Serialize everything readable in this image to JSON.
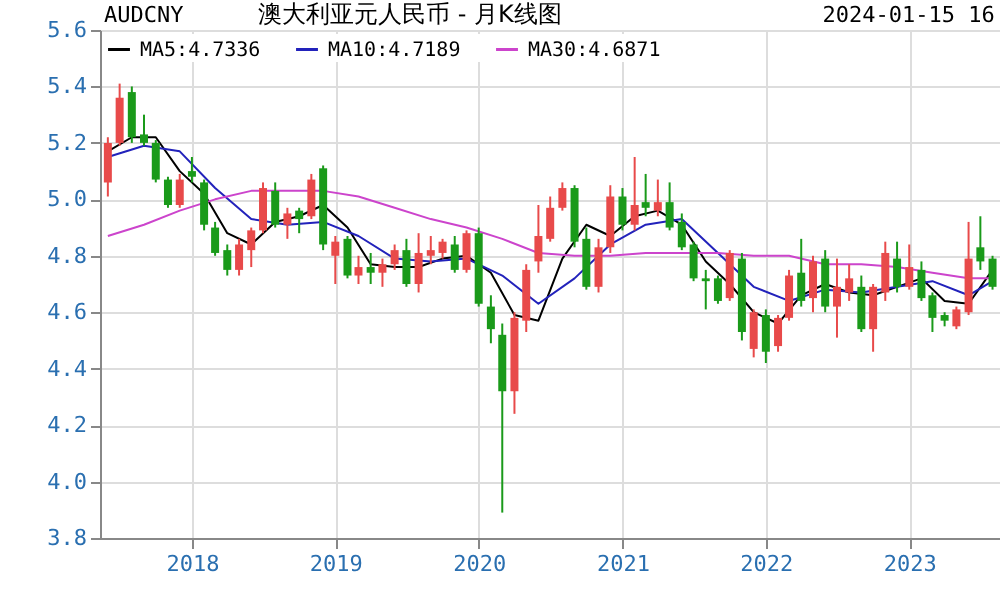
{
  "chart_data": {
    "type": "candlestick",
    "title": "澳大利亚元人民币 - 月K线图",
    "annotations": [
      "AUDCNY",
      "2024-01-15 16:"
    ],
    "x": [
      "2017-06",
      "2017-07",
      "2017-08",
      "2017-09",
      "2017-10",
      "2017-11",
      "2017-12",
      "2018-01",
      "2018-02",
      "2018-03",
      "2018-04",
      "2018-05",
      "2018-06",
      "2018-07",
      "2018-08",
      "2018-09",
      "2018-10",
      "2018-11",
      "2018-12",
      "2019-01",
      "2019-02",
      "2019-03",
      "2019-04",
      "2019-05",
      "2019-06",
      "2019-07",
      "2019-08",
      "2019-09",
      "2019-10",
      "2019-11",
      "2019-12",
      "2020-01",
      "2020-02",
      "2020-03",
      "2020-04",
      "2020-05",
      "2020-06",
      "2020-07",
      "2020-08",
      "2020-09",
      "2020-10",
      "2020-11",
      "2020-12",
      "2021-01",
      "2021-02",
      "2021-03",
      "2021-04",
      "2021-05",
      "2021-06",
      "2021-07",
      "2021-08",
      "2021-09",
      "2021-10",
      "2021-11",
      "2021-12",
      "2022-01",
      "2022-02",
      "2022-03",
      "2022-04",
      "2022-05",
      "2022-06",
      "2022-07",
      "2022-08",
      "2022-09",
      "2022-10",
      "2022-11",
      "2022-12",
      "2023-01",
      "2023-02",
      "2023-03",
      "2023-04",
      "2023-05",
      "2023-06",
      "2023-07",
      "2023-08"
    ],
    "ohlc": [
      [
        5.06,
        5.22,
        5.01,
        5.2
      ],
      [
        5.2,
        5.41,
        5.19,
        5.36
      ],
      [
        5.38,
        5.4,
        5.2,
        5.22
      ],
      [
        5.23,
        5.3,
        5.19,
        5.2
      ],
      [
        5.2,
        5.21,
        5.06,
        5.07
      ],
      [
        5.07,
        5.08,
        4.97,
        4.98
      ],
      [
        4.98,
        5.09,
        4.97,
        5.07
      ],
      [
        5.1,
        5.15,
        5.06,
        5.08
      ],
      [
        5.06,
        5.07,
        4.89,
        4.91
      ],
      [
        4.9,
        4.92,
        4.8,
        4.81
      ],
      [
        4.82,
        4.84,
        4.73,
        4.75
      ],
      [
        4.75,
        4.86,
        4.73,
        4.84
      ],
      [
        4.82,
        4.9,
        4.76,
        4.89
      ],
      [
        4.89,
        5.06,
        4.88,
        5.04
      ],
      [
        5.03,
        5.06,
        4.9,
        4.91
      ],
      [
        4.91,
        4.97,
        4.86,
        4.95
      ],
      [
        4.96,
        4.97,
        4.88,
        4.93
      ],
      [
        4.94,
        5.09,
        4.93,
        5.07
      ],
      [
        5.11,
        5.12,
        4.82,
        4.84
      ],
      [
        4.8,
        4.87,
        4.7,
        4.85
      ],
      [
        4.86,
        4.87,
        4.72,
        4.73
      ],
      [
        4.73,
        4.8,
        4.7,
        4.76
      ],
      [
        4.76,
        4.81,
        4.7,
        4.74
      ],
      [
        4.74,
        4.79,
        4.69,
        4.77
      ],
      [
        4.77,
        4.84,
        4.75,
        4.82
      ],
      [
        4.82,
        4.86,
        4.69,
        4.7
      ],
      [
        4.7,
        4.88,
        4.67,
        4.81
      ],
      [
        4.8,
        4.87,
        4.77,
        4.82
      ],
      [
        4.81,
        4.86,
        4.79,
        4.85
      ],
      [
        4.84,
        4.87,
        4.74,
        4.75
      ],
      [
        4.75,
        4.89,
        4.74,
        4.88
      ],
      [
        4.88,
        4.9,
        4.62,
        4.63
      ],
      [
        4.62,
        4.66,
        4.49,
        4.54
      ],
      [
        4.52,
        4.56,
        3.89,
        4.32
      ],
      [
        4.32,
        4.6,
        4.24,
        4.58
      ],
      [
        4.57,
        4.77,
        4.53,
        4.75
      ],
      [
        4.78,
        4.98,
        4.74,
        4.87
      ],
      [
        4.86,
        5.01,
        4.85,
        4.97
      ],
      [
        4.97,
        5.06,
        4.96,
        5.04
      ],
      [
        5.04,
        5.05,
        4.83,
        4.85
      ],
      [
        4.86,
        4.9,
        4.68,
        4.69
      ],
      [
        4.69,
        4.86,
        4.67,
        4.83
      ],
      [
        4.83,
        5.05,
        4.81,
        5.01
      ],
      [
        5.01,
        5.04,
        4.89,
        4.91
      ],
      [
        4.91,
        5.15,
        4.89,
        4.98
      ],
      [
        4.99,
        5.09,
        4.94,
        4.97
      ],
      [
        4.96,
        5.07,
        4.94,
        4.99
      ],
      [
        4.99,
        5.06,
        4.89,
        4.9
      ],
      [
        4.92,
        4.95,
        4.82,
        4.83
      ],
      [
        4.84,
        4.85,
        4.71,
        4.72
      ],
      [
        4.72,
        4.75,
        4.61,
        4.71
      ],
      [
        4.72,
        4.73,
        4.63,
        4.64
      ],
      [
        4.65,
        4.82,
        4.64,
        4.81
      ],
      [
        4.79,
        4.81,
        4.5,
        4.53
      ],
      [
        4.47,
        4.61,
        4.44,
        4.6
      ],
      [
        4.59,
        4.61,
        4.42,
        4.46
      ],
      [
        4.48,
        4.59,
        4.46,
        4.58
      ],
      [
        4.58,
        4.75,
        4.57,
        4.73
      ],
      [
        4.74,
        4.86,
        4.62,
        4.64
      ],
      [
        4.65,
        4.8,
        4.6,
        4.78
      ],
      [
        4.79,
        4.82,
        4.6,
        4.62
      ],
      [
        4.62,
        4.79,
        4.51,
        4.69
      ],
      [
        4.67,
        4.77,
        4.64,
        4.72
      ],
      [
        4.69,
        4.73,
        4.53,
        4.54
      ],
      [
        4.54,
        4.7,
        4.46,
        4.69
      ],
      [
        4.67,
        4.85,
        4.64,
        4.81
      ],
      [
        4.79,
        4.85,
        4.67,
        4.69
      ],
      [
        4.69,
        4.84,
        4.68,
        4.76
      ],
      [
        4.75,
        4.78,
        4.64,
        4.65
      ],
      [
        4.66,
        4.67,
        4.53,
        4.58
      ],
      [
        4.59,
        4.6,
        4.55,
        4.57
      ],
      [
        4.55,
        4.62,
        4.54,
        4.61
      ],
      [
        4.6,
        4.92,
        4.59,
        4.79
      ],
      [
        4.83,
        4.94,
        4.75,
        4.78
      ],
      [
        4.79,
        4.8,
        4.68,
        4.69
      ]
    ],
    "colors": [
      "#e84a4a",
      "#e84a4a",
      "#1a9a1a",
      "#1a9a1a",
      "#1a9a1a",
      "#1a9a1a",
      "#e84a4a",
      "#1a9a1a",
      "#1a9a1a",
      "#1a9a1a",
      "#1a9a1a",
      "#e84a4a",
      "#e84a4a",
      "#e84a4a",
      "#1a9a1a",
      "#e84a4a",
      "#1a9a1a",
      "#e84a4a",
      "#1a9a1a",
      "#e84a4a",
      "#1a9a1a",
      "#e84a4a",
      "#1a9a1a",
      "#e84a4a",
      "#e84a4a",
      "#1a9a1a",
      "#e84a4a",
      "#e84a4a",
      "#e84a4a",
      "#1a9a1a",
      "#e84a4a",
      "#1a9a1a",
      "#1a9a1a",
      "#1a9a1a",
      "#e84a4a",
      "#e84a4a",
      "#e84a4a",
      "#e84a4a",
      "#e84a4a",
      "#1a9a1a",
      "#1a9a1a",
      "#e84a4a",
      "#e84a4a",
      "#1a9a1a",
      "#e84a4a",
      "#1a9a1a",
      "#e84a4a",
      "#1a9a1a",
      "#1a9a1a",
      "#1a9a1a",
      "#1a9a1a",
      "#1a9a1a",
      "#e84a4a",
      "#1a9a1a",
      "#e84a4a",
      "#1a9a1a",
      "#e84a4a",
      "#e84a4a",
      "#1a9a1a",
      "#e84a4a",
      "#1a9a1a",
      "#e84a4a",
      "#e84a4a",
      "#1a9a1a",
      "#e84a4a",
      "#e84a4a",
      "#1a9a1a",
      "#e84a4a",
      "#1a9a1a",
      "#1a9a1a",
      "#1a9a1a",
      "#e84a4a",
      "#e84a4a",
      "#1a9a1a",
      "#1a9a1a"
    ],
    "series": [
      {
        "name": "MA5:4.7336",
        "type": "line",
        "color": "#000000",
        "x": [
          "2017-06",
          "2017-08",
          "2017-10",
          "2017-12",
          "2018-02",
          "2018-04",
          "2018-06",
          "2018-08",
          "2018-10",
          "2018-12",
          "2019-02",
          "2019-04",
          "2019-06",
          "2019-08",
          "2019-10",
          "2019-12",
          "2020-02",
          "2020-04",
          "2020-06",
          "2020-08",
          "2020-10",
          "2020-12",
          "2021-02",
          "2021-04",
          "2021-06",
          "2021-08",
          "2021-10",
          "2021-12",
          "2022-02",
          "2022-04",
          "2022-06",
          "2022-08",
          "2022-10",
          "2022-12",
          "2023-02",
          "2023-04",
          "2023-06",
          "2023-08"
        ],
        "values": [
          5.17,
          5.22,
          5.22,
          5.1,
          5.02,
          4.88,
          4.84,
          4.92,
          4.94,
          4.98,
          4.9,
          4.77,
          4.76,
          4.76,
          4.79,
          4.8,
          4.74,
          4.59,
          4.57,
          4.79,
          4.91,
          4.87,
          4.94,
          4.96,
          4.91,
          4.78,
          4.7,
          4.6,
          4.56,
          4.66,
          4.7,
          4.67,
          4.66,
          4.69,
          4.72,
          4.64,
          4.63,
          4.75
        ]
      },
      {
        "name": "MA10:4.7189",
        "type": "line",
        "color": "#2222bb",
        "x": [
          "2017-06",
          "2017-09",
          "2017-12",
          "2018-03",
          "2018-06",
          "2018-09",
          "2018-12",
          "2019-03",
          "2019-06",
          "2019-09",
          "2019-12",
          "2020-03",
          "2020-06",
          "2020-09",
          "2020-12",
          "2021-03",
          "2021-06",
          "2021-09",
          "2021-12",
          "2022-03",
          "2022-06",
          "2022-09",
          "2022-12",
          "2023-03",
          "2023-06",
          "2023-08"
        ],
        "values": [
          5.15,
          5.19,
          5.17,
          5.04,
          4.93,
          4.91,
          4.92,
          4.87,
          4.79,
          4.78,
          4.79,
          4.73,
          4.63,
          4.72,
          4.84,
          4.91,
          4.93,
          4.81,
          4.69,
          4.64,
          4.68,
          4.67,
          4.69,
          4.71,
          4.66,
          4.71
        ]
      },
      {
        "name": "MA30:4.6871",
        "type": "line",
        "color": "#cc44cc",
        "x": [
          "2017-06",
          "2017-09",
          "2017-12",
          "2018-03",
          "2018-06",
          "2018-09",
          "2018-12",
          "2019-03",
          "2019-06",
          "2019-09",
          "2019-12",
          "2020-03",
          "2020-06",
          "2020-09",
          "2020-12",
          "2021-03",
          "2021-06",
          "2021-09",
          "2021-12",
          "2022-03",
          "2022-06",
          "2022-09",
          "2022-12",
          "2023-03",
          "2023-06",
          "2023-08"
        ],
        "values": [
          4.87,
          4.91,
          4.96,
          5.0,
          5.03,
          5.03,
          5.03,
          5.01,
          4.97,
          4.93,
          4.9,
          4.86,
          4.81,
          4.8,
          4.8,
          4.81,
          4.81,
          4.81,
          4.8,
          4.8,
          4.77,
          4.77,
          4.76,
          4.74,
          4.72,
          4.72
        ]
      }
    ],
    "xlim": [
      "2017-05-12",
      "2023-08-20"
    ],
    "xticks": [
      {
        "value": "2018-01",
        "label": "2018"
      },
      {
        "value": "2019-01",
        "label": "2019"
      },
      {
        "value": "2020-01",
        "label": "2020"
      },
      {
        "value": "2021-01",
        "label": "2021"
      },
      {
        "value": "2022-01",
        "label": "2022"
      },
      {
        "value": "2023-01",
        "label": "2023"
      }
    ],
    "ylim": [
      3.8,
      5.6
    ],
    "yticks": [
      3.8,
      {
        "value": 4.0,
        "label": "4.0"
      },
      4.2,
      4.4,
      4.6,
      4.8,
      {
        "value": 5.0,
        "label": "5.0"
      },
      5.2,
      5.4,
      5.6
    ],
    "grid": true,
    "legend": "top left",
    "line_style": "solid",
    "marker": "none"
  }
}
